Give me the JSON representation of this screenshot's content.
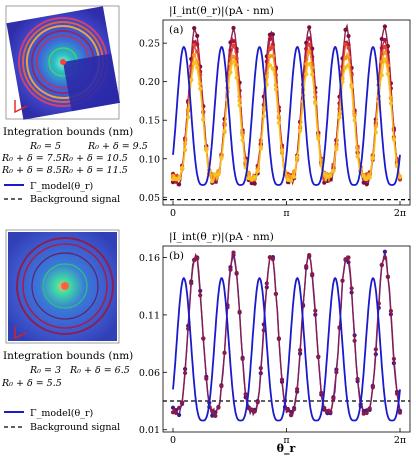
{
  "colors": {
    "model": "#1a1acc",
    "background": "#000000",
    "top_series": [
      "#7a0f3c",
      "#b3123d",
      "#e0442a",
      "#f59a1c",
      "#f7c21e"
    ],
    "bottom_series": [
      "#3d1a8a",
      "#8a1a4a",
      "#b0154a"
    ]
  },
  "panels": [
    {
      "id": "a",
      "label": "(a)",
      "ylabel": "|I_int(θ_r)|(pA · nm)",
      "ylim": [
        0.04,
        0.28
      ],
      "yticks": [
        "0.05",
        "0.10",
        "0.15",
        "0.20",
        "0.25"
      ],
      "yvals": [
        0.05,
        0.1,
        0.15,
        0.2,
        0.25
      ],
      "legend_title": "Integration bounds (nm)",
      "legend_entries": [
        {
          "text": "R₀ = 5",
          "color": "#1f9a3a"
        },
        {
          "text": "R₀ + δ = 9.5",
          "color": "#7a0f3c"
        },
        {
          "text": "R₀ + δ = 7.5",
          "color": "#b3123d"
        },
        {
          "text": "R₀ + δ = 10.5",
          "color": "#e0602a"
        },
        {
          "text": "R₀ + δ = 8.5",
          "color": "#c01a4a"
        },
        {
          "text": "R₀ + δ = 11.5",
          "color": "#f5b01c"
        }
      ],
      "model_label": "Γ_model(θ_r)",
      "background_label": "Background signal",
      "background_value": 0.047
    },
    {
      "id": "b",
      "label": "(b)",
      "ylabel": "|I_int(θ_r)|(pA · nm)",
      "ylim": [
        0.008,
        0.17
      ],
      "yticks": [
        "0.01",
        "0.06",
        "0.11",
        "0.16"
      ],
      "yvals": [
        0.01,
        0.06,
        0.11,
        0.16
      ],
      "legend_title": "Integration bounds (nm)",
      "legend_entries": [
        {
          "text": "R₀ = 3",
          "color": "#1f9a3a"
        },
        {
          "text": "R₀ + δ = 6.5",
          "color": "#8a1a4a"
        },
        {
          "text": "R₀ + δ = 5.5",
          "color": "#5a1a7a"
        }
      ],
      "model_label": "Γ_model(θ_r)",
      "background_label": "Background signal",
      "background_value": 0.035
    }
  ],
  "xaxis": {
    "label": "θ_r",
    "ticks": [
      "0",
      "π",
      "2π"
    ]
  },
  "chart_data": [
    {
      "type": "line",
      "panel": "(a)",
      "ylabel": "|I_int(θ_r)|(pA · nm)",
      "xlim": [
        0,
        6.2832
      ],
      "ylim": [
        0.04,
        0.28
      ],
      "series": [
        {
          "name": "Γ_model(θ_r)",
          "kind": "model",
          "period": 1.0472,
          "phase": 0.3,
          "min": 0.066,
          "max": 0.245
        },
        {
          "name": "R₀ + δ = 9.5",
          "kind": "data",
          "period": 1.0472,
          "phase": 0.62,
          "min": 0.07,
          "max": 0.268
        },
        {
          "name": "R₀ + δ = 11.5",
          "kind": "data",
          "period": 1.0472,
          "phase": 0.62,
          "min": 0.075,
          "max": 0.225
        }
      ],
      "background_signal": 0.047
    },
    {
      "type": "line",
      "panel": "(b)",
      "ylabel": "|I_int(θ_r)|(pA · nm)",
      "xlim": [
        0,
        6.2832
      ],
      "ylim": [
        0.008,
        0.17
      ],
      "series": [
        {
          "name": "Γ_model(θ_r)",
          "kind": "model",
          "period": 1.0472,
          "phase": 0.3,
          "min": 0.018,
          "max": 0.142
        },
        {
          "name": "R₀ + δ = 6.5",
          "kind": "data",
          "period": 1.0472,
          "phase": 0.62,
          "min": 0.025,
          "max": 0.162
        }
      ],
      "background_signal": 0.035
    }
  ]
}
